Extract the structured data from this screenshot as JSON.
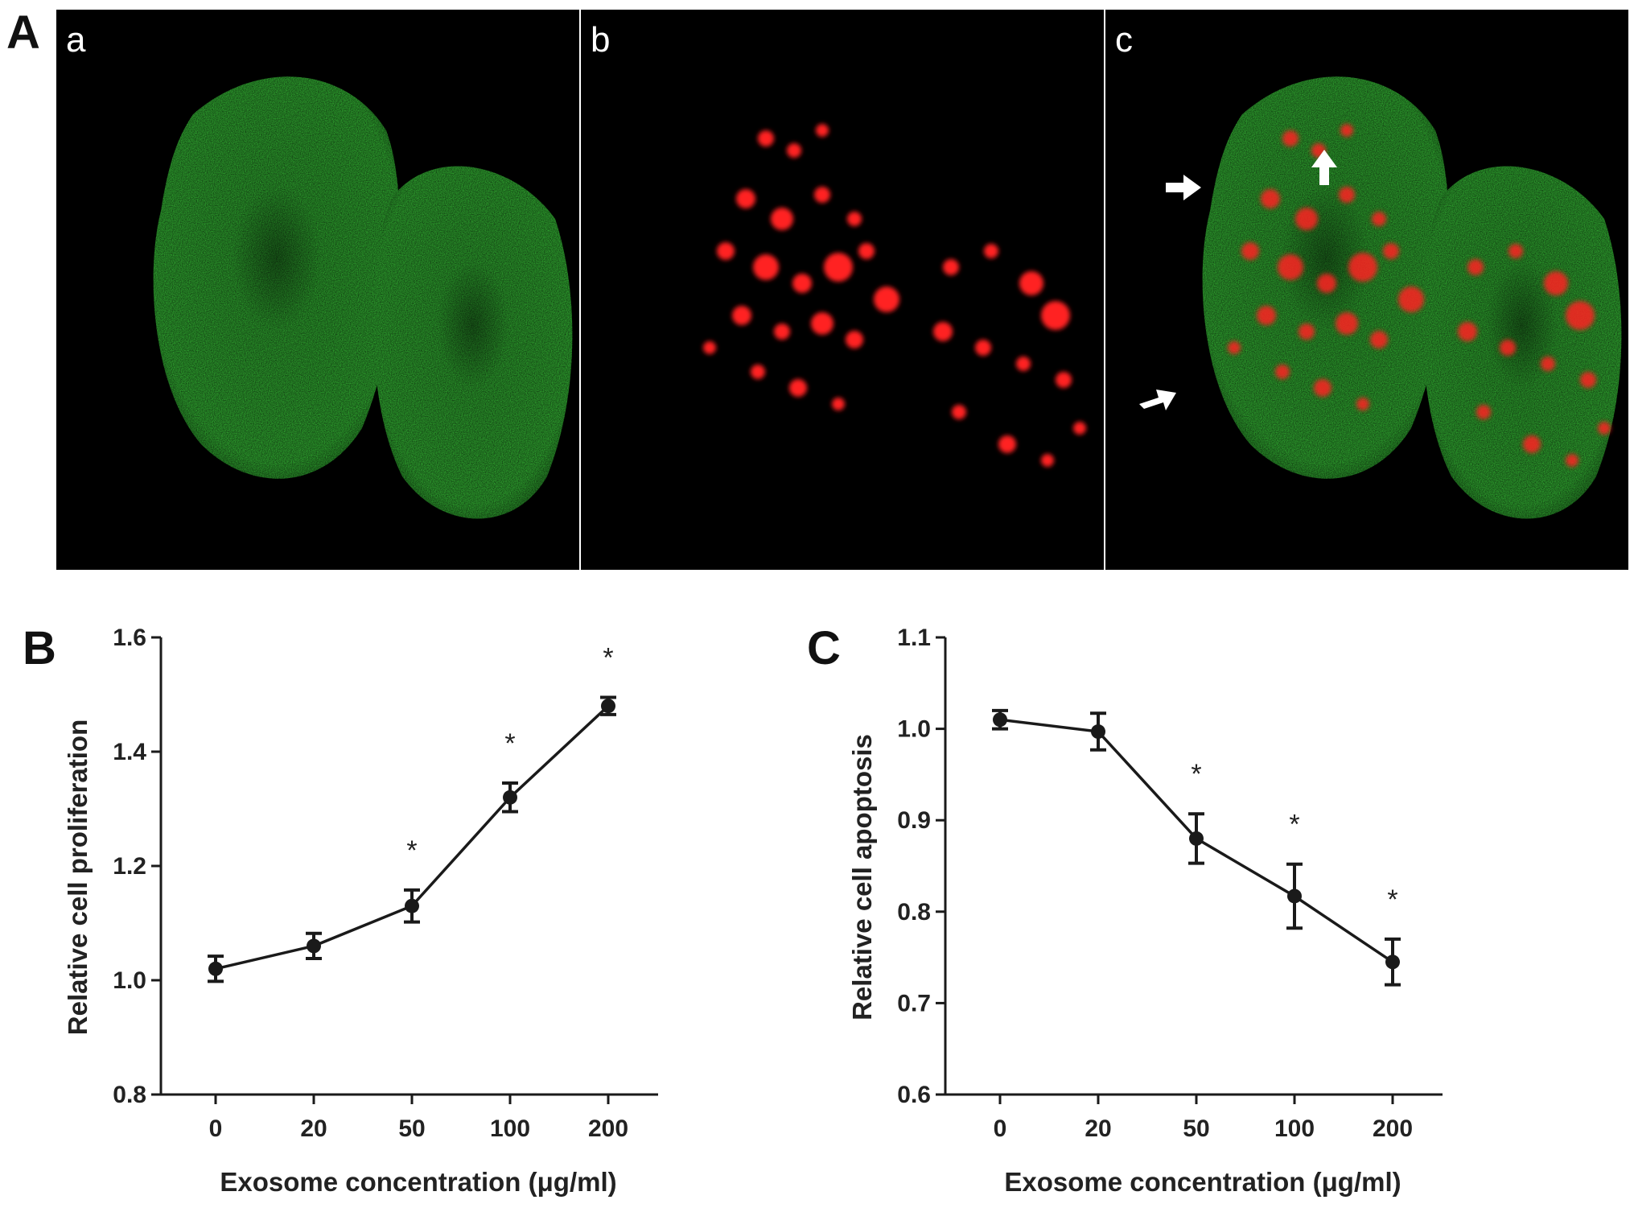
{
  "panel_A": {
    "label": "A",
    "subpanels": [
      {
        "label": "a",
        "channel": "green"
      },
      {
        "label": "b",
        "channel": "red"
      },
      {
        "label": "c",
        "channel": "merge"
      }
    ]
  },
  "chart_data": [
    {
      "panel": "B",
      "type": "line",
      "xlabel": "Exosome concentration (μg/ml)",
      "ylabel": "Relative cell proliferation",
      "categories": [
        "0",
        "20",
        "50",
        "100",
        "200"
      ],
      "values": [
        1.02,
        1.06,
        1.13,
        1.32,
        1.48
      ],
      "errors": [
        0.022,
        0.022,
        0.028,
        0.025,
        0.015
      ],
      "significance": [
        "",
        "",
        "*",
        "*",
        "*"
      ],
      "ylim": [
        0.8,
        1.6
      ],
      "yticks": [
        "0.8",
        "1.0",
        "1.2",
        "1.4",
        "1.6"
      ],
      "color": "#1a1a1a",
      "grid": false
    },
    {
      "panel": "C",
      "type": "line",
      "xlabel": "Exosome concentration (μg/ml)",
      "ylabel": "Relative cell apoptosis",
      "categories": [
        "0",
        "20",
        "50",
        "100",
        "200"
      ],
      "values": [
        1.01,
        0.997,
        0.88,
        0.817,
        0.745
      ],
      "errors": [
        0.01,
        0.02,
        0.027,
        0.035,
        0.025
      ],
      "significance": [
        "",
        "",
        "*",
        "*",
        "*"
      ],
      "ylim": [
        0.6,
        1.1
      ],
      "yticks": [
        "0.6",
        "0.7",
        "0.8",
        "0.9",
        "1.0",
        "1.1"
      ],
      "color": "#1a1a1a",
      "grid": false
    }
  ]
}
